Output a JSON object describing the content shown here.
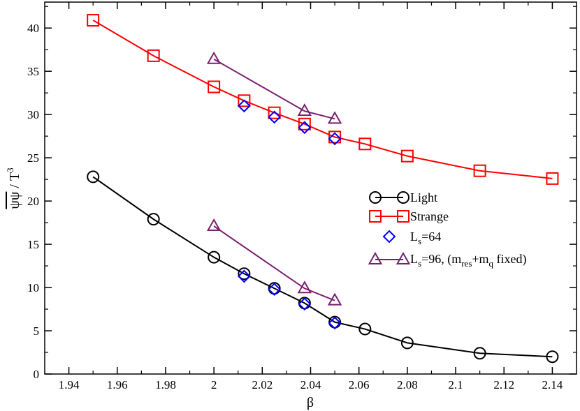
{
  "chart_data": {
    "type": "line",
    "title": "",
    "xlabel": "β",
    "ylabel": "ψψ / T3",
    "ylabel_parts": {
      "bar": "ψψ",
      "slash": " / T",
      "sup": "3"
    },
    "xlim": [
      1.93,
      2.15
    ],
    "ylim": [
      0,
      43
    ],
    "xticks": [
      1.94,
      1.96,
      1.98,
      2,
      2.02,
      2.04,
      2.06,
      2.08,
      2.1,
      2.12,
      2.14
    ],
    "xtick_labels": [
      "1.94",
      "1.96",
      "1.98",
      "2",
      "2.02",
      "2.04",
      "2.06",
      "2.08",
      "2.1",
      "2.12",
      "2.14"
    ],
    "yticks": [
      0,
      5,
      10,
      15,
      20,
      25,
      30,
      35,
      40
    ],
    "ytick_labels": [
      "0",
      "5",
      "10",
      "15",
      "20",
      "25",
      "30",
      "35",
      "40"
    ],
    "grid": false,
    "legend_position": "right-middle",
    "series": [
      {
        "name": "Light",
        "label": "Light",
        "marker": "circle",
        "line": true,
        "color": "#000000",
        "points": [
          [
            1.95,
            22.8
          ],
          [
            1.975,
            17.9
          ],
          [
            2.0,
            13.5
          ],
          [
            2.0125,
            11.6
          ],
          [
            2.025,
            9.9
          ],
          [
            2.0375,
            8.2
          ],
          [
            2.05,
            6.0
          ],
          [
            2.0625,
            5.2
          ],
          [
            2.08,
            3.6
          ],
          [
            2.11,
            2.4
          ],
          [
            2.14,
            2.0
          ]
        ]
      },
      {
        "name": "Strange",
        "label": "Strange",
        "marker": "square",
        "line": true,
        "color": "#ff0000",
        "points": [
          [
            1.95,
            40.9
          ],
          [
            1.975,
            36.8
          ],
          [
            2.0,
            33.2
          ],
          [
            2.0125,
            31.6
          ],
          [
            2.025,
            30.2
          ],
          [
            2.0375,
            28.9
          ],
          [
            2.05,
            27.4
          ],
          [
            2.0625,
            26.6
          ],
          [
            2.08,
            25.2
          ],
          [
            2.11,
            23.5
          ],
          [
            2.14,
            22.6
          ]
        ]
      },
      {
        "name": "Ls=64",
        "label_main": "L",
        "label_sub": "s",
        "label_rest": "=64",
        "marker": "diamond",
        "line": false,
        "color": "#0000ff",
        "points": [
          [
            2.0125,
            31.0
          ],
          [
            2.025,
            29.7
          ],
          [
            2.0375,
            28.5
          ],
          [
            2.05,
            27.2
          ],
          [
            2.0125,
            11.3
          ],
          [
            2.025,
            9.8
          ],
          [
            2.0375,
            8.1
          ],
          [
            2.05,
            5.9
          ]
        ]
      },
      {
        "name": "Ls=96, (mres+mq fixed)",
        "label_main": "L",
        "label_sub": "s",
        "label_mid": "=96, (m",
        "label_sub2": "res",
        "label_mid2": "+m",
        "label_sub3": "q",
        "label_end": " fixed)",
        "marker": "triangle",
        "line": true,
        "color": "#7a1f6e",
        "segments": [
          [
            [
              2.0,
              36.4
            ],
            [
              2.0375,
              30.4
            ],
            [
              2.05,
              29.5
            ]
          ],
          [
            [
              2.0,
              17.1
            ],
            [
              2.0375,
              9.9
            ],
            [
              2.05,
              8.5
            ]
          ]
        ]
      }
    ]
  }
}
